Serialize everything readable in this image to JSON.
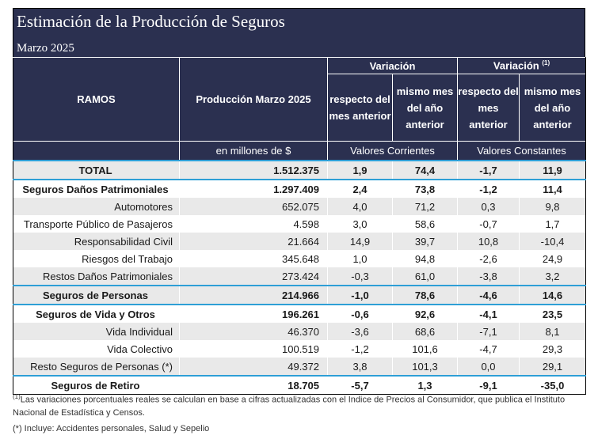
{
  "title": "Estimación de la Producción de Seguros",
  "subtitle": "Marzo 2025",
  "header": {
    "ramos": "RAMOS",
    "produccion": "Producción Marzo 2025",
    "variacion": "Variación",
    "variacion_const": "Variación",
    "variacion_const_sup": "(1)",
    "resp_mes": "respecto del mes anterior",
    "mismo_mes": "mismo mes del año anterior",
    "unidad": "en millones de $",
    "valores_corrientes": "Valores Corrientes",
    "valores_constantes": "Valores Constantes"
  },
  "rows": [
    {
      "name": "TOTAL",
      "prod": "1.512.375",
      "v1": "1,9",
      "v2": "74,4",
      "v3": "-1,7",
      "v4": "11,9"
    },
    {
      "name": "Seguros Daños Patrimoniales",
      "prod": "1.297.409",
      "v1": "2,4",
      "v2": "73,8",
      "v3": "-1,2",
      "v4": "11,4"
    },
    {
      "name": "Automotores",
      "prod": "652.075",
      "v1": "4,0",
      "v2": "71,2",
      "v3": "0,3",
      "v4": "9,8"
    },
    {
      "name": "Transporte Público de Pasajeros",
      "prod": "4.598",
      "v1": "3,0",
      "v2": "58,6",
      "v3": "-0,7",
      "v4": "1,7"
    },
    {
      "name": "Responsabilidad Civil",
      "prod": "21.664",
      "v1": "14,9",
      "v2": "39,7",
      "v3": "10,8",
      "v4": "-10,4"
    },
    {
      "name": "Riesgos del Trabajo",
      "prod": "345.648",
      "v1": "1,0",
      "v2": "94,8",
      "v3": "-2,6",
      "v4": "24,9"
    },
    {
      "name": "Restos Daños Patrimoniales",
      "prod": "273.424",
      "v1": "-0,3",
      "v2": "61,0",
      "v3": "-3,8",
      "v4": "3,2"
    },
    {
      "name": "Seguros de Personas",
      "prod": "214.966",
      "v1": "-1,0",
      "v2": "78,6",
      "v3": "-4,6",
      "v4": "14,6"
    },
    {
      "name": "Seguros de Vida y Otros",
      "prod": "196.261",
      "v1": "-0,6",
      "v2": "92,6",
      "v3": "-4,1",
      "v4": "23,5"
    },
    {
      "name": "Vida Individual",
      "prod": "46.370",
      "v1": "-3,6",
      "v2": "68,6",
      "v3": "-7,1",
      "v4": "8,1"
    },
    {
      "name": "Vida Colectivo",
      "prod": "100.519",
      "v1": "-1,2",
      "v2": "101,6",
      "v3": "-4,7",
      "v4": "29,3"
    },
    {
      "name": "Resto Seguros de Personas (*)",
      "prod": "49.372",
      "v1": "3,8",
      "v2": "101,3",
      "v3": "0,0",
      "v4": "29,1"
    },
    {
      "name": "Seguros de Retiro",
      "prod": "18.705",
      "v1": "-5,7",
      "v2": "1,3",
      "v3": "-9,1",
      "v4": "-35,0"
    }
  ],
  "notes": {
    "note1_sup": "(1)",
    "note1": "Las variaciones porcentuales reales se calculan en base a cifras actualizadas con  el Indice de Precios al Consumidor, que publica el Instituto Nacional de Estadística y  Censos.",
    "note2": "(*) Incluye: Accidentes personales, Salud y Sepelio"
  }
}
